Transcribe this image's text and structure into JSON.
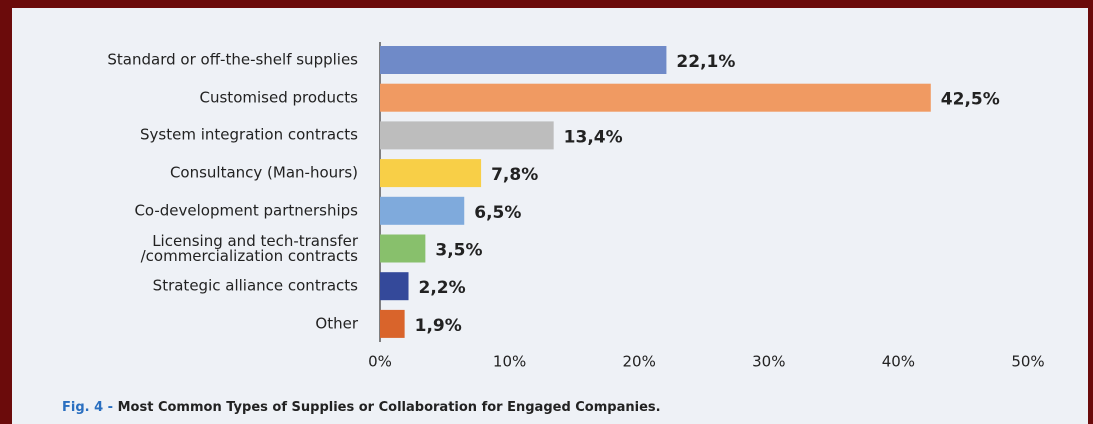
{
  "chart_data": {
    "type": "barh",
    "figure_label": "Fig. 4 -",
    "title": "Most Common Types of Supplies or Collaboration for Engaged Companies.",
    "categories": [
      "Standard or off-the-shelf supplies",
      "Customised products",
      "System integration contracts",
      "Consultancy (Man-hours)",
      "Co-development partnerships",
      "Licensing and tech-transfer\n/commercialization contracts",
      "Strategic alliance contracts",
      "Other"
    ],
    "values": [
      22.1,
      42.5,
      13.4,
      7.8,
      6.5,
      3.5,
      2.2,
      1.9
    ],
    "value_labels": [
      "22,1%",
      "42,5%",
      "13,4%",
      "7,8%",
      "6,5%",
      "3,5%",
      "2,2%",
      "1,9%"
    ],
    "colors": [
      "#6f8ac8",
      "#f09a62",
      "#bdbdbd",
      "#f8cf47",
      "#7faadc",
      "#88c06c",
      "#34499a",
      "#d9642b"
    ],
    "xlim": [
      0,
      50
    ],
    "xticks": [
      {
        "value": 0,
        "label": "0%"
      },
      {
        "value": 10,
        "label": "10%"
      },
      {
        "value": 20,
        "label": "20%"
      },
      {
        "value": 30,
        "label": "30%"
      },
      {
        "value": 40,
        "label": "40%"
      },
      {
        "value": 50,
        "label": "50%"
      }
    ],
    "grid": false
  }
}
